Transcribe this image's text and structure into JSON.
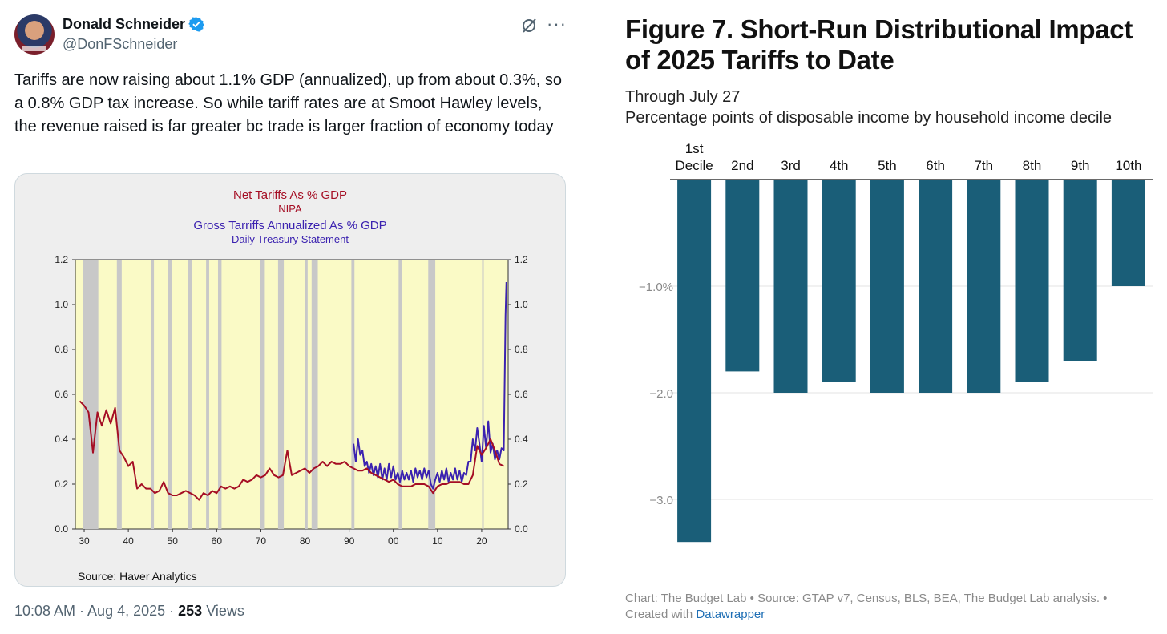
{
  "tweet": {
    "author_name": "Donald Schneider",
    "author_handle": "@DonFSchneider",
    "text": "Tariffs are now raising about 1.1% GDP (annualized), up from about 0.3%, so a 0.8% GDP tax increase. So while tariff rates are at Smoot Hawley levels, the revenue raised is far greater bc trade is larger fraction of economy today",
    "timestamp": "10:08 AM · Aug 4, 2025 · ",
    "views_count": "253",
    "views_label": " Views",
    "colors": {
      "verified": "#1d9bf0",
      "text": "#0f1419",
      "muted": "#536471"
    }
  },
  "left_chart": {
    "title_1": "Net Tariffs As % GDP",
    "title_1_sub": "NIPA",
    "title_2": "Gross Tarriffs Annualized As % GDP",
    "title_2_sub": "Daily Treasury Statement",
    "source": "Source:  Haver Analytics",
    "colors": {
      "net": "#a50e24",
      "gross": "#3b22b0",
      "plot_bg": "#fafac6",
      "recession": "#c8c8c8"
    }
  },
  "figure": {
    "title": "Figure 7. Short-Run Distributional Impact of 2025 Tariffs to Date",
    "subtitle_1": "Through July 27",
    "subtitle_2": "Percentage points of disposable income by household income decile",
    "note_1": "Chart: The Budget Lab • Source: GTAP v7, Census, BLS, BEA, The Budget Lab analysis. • ",
    "note_2": "Created with ",
    "note_link": "Datawrapper",
    "bar_color": "#1a5e78"
  },
  "chart_data": [
    {
      "type": "line",
      "title": "Net Tariffs As % GDP / Gross Tarriffs Annualized As % GDP",
      "x_ticks": [
        "30",
        "40",
        "50",
        "60",
        "70",
        "80",
        "90",
        "00",
        "10",
        "20"
      ],
      "y_ticks": [
        "0.0",
        "0.2",
        "0.4",
        "0.6",
        "0.8",
        "1.0",
        "1.2"
      ],
      "xlim": [
        1928,
        2026
      ],
      "ylim": [
        0,
        1.2
      ],
      "recessions": [
        [
          1929.7,
          1933.2
        ],
        [
          1937.4,
          1938.5
        ],
        [
          1945.1,
          1945.8
        ],
        [
          1948.9,
          1949.8
        ],
        [
          1953.5,
          1954.4
        ],
        [
          1957.6,
          1958.3
        ],
        [
          1960.3,
          1961.1
        ],
        [
          1969.9,
          1970.9
        ],
        [
          1973.9,
          1975.2
        ],
        [
          1980.0,
          1980.6
        ],
        [
          1981.5,
          1982.9
        ],
        [
          1990.5,
          1991.2
        ],
        [
          2001.2,
          2001.9
        ],
        [
          2007.9,
          2009.5
        ],
        [
          2020.1,
          2020.4
        ]
      ],
      "series": [
        {
          "name": "Net Tariffs As % GDP (NIPA)",
          "x": [
            1929,
            1930,
            1931,
            1932,
            1933,
            1934,
            1935,
            1936,
            1937,
            1938,
            1939,
            1940,
            1941,
            1942,
            1943,
            1944,
            1945,
            1946,
            1947,
            1948,
            1949,
            1950,
            1951,
            1952,
            1953,
            1954,
            1955,
            1956,
            1957,
            1958,
            1959,
            1960,
            1961,
            1962,
            1963,
            1964,
            1965,
            1966,
            1967,
            1968,
            1969,
            1970,
            1971,
            1972,
            1973,
            1974,
            1975,
            1976,
            1977,
            1978,
            1979,
            1980,
            1981,
            1982,
            1983,
            1984,
            1985,
            1986,
            1987,
            1988,
            1989,
            1990,
            1991,
            1992,
            1993,
            1994,
            1995,
            1996,
            1997,
            1998,
            1999,
            2000,
            2001,
            2002,
            2003,
            2004,
            2005,
            2006,
            2007,
            2008,
            2009,
            2010,
            2011,
            2012,
            2013,
            2014,
            2015,
            2016,
            2017,
            2018,
            2019,
            2020,
            2021,
            2022,
            2023,
            2024,
            2025
          ],
          "values": [
            0.57,
            0.55,
            0.52,
            0.34,
            0.52,
            0.46,
            0.53,
            0.47,
            0.54,
            0.35,
            0.32,
            0.28,
            0.3,
            0.18,
            0.2,
            0.18,
            0.18,
            0.16,
            0.17,
            0.21,
            0.16,
            0.15,
            0.15,
            0.16,
            0.17,
            0.16,
            0.15,
            0.13,
            0.16,
            0.15,
            0.17,
            0.16,
            0.19,
            0.18,
            0.19,
            0.18,
            0.19,
            0.22,
            0.21,
            0.22,
            0.24,
            0.23,
            0.24,
            0.27,
            0.24,
            0.23,
            0.24,
            0.35,
            0.24,
            0.25,
            0.26,
            0.27,
            0.25,
            0.27,
            0.28,
            0.3,
            0.28,
            0.3,
            0.29,
            0.29,
            0.3,
            0.28,
            0.27,
            0.26,
            0.26,
            0.27,
            0.25,
            0.24,
            0.23,
            0.22,
            0.21,
            0.22,
            0.2,
            0.19,
            0.19,
            0.19,
            0.2,
            0.2,
            0.2,
            0.19,
            0.16,
            0.19,
            0.2,
            0.2,
            0.21,
            0.21,
            0.21,
            0.2,
            0.2,
            0.24,
            0.37,
            0.33,
            0.36,
            0.4,
            0.35,
            0.29,
            0.28
          ]
        },
        {
          "name": "Gross Tarriffs Annualized As % GDP (Daily Treasury Statement)",
          "x": [
            1991.0,
            1991.5,
            1992.0,
            1992.5,
            1993.0,
            1993.5,
            1994.0,
            1994.5,
            1995.0,
            1995.5,
            1996.0,
            1996.5,
            1997.0,
            1997.5,
            1998.0,
            1998.5,
            1999.0,
            1999.5,
            2000.0,
            2000.5,
            2001.0,
            2001.5,
            2002.0,
            2002.5,
            2003.0,
            2003.5,
            2004.0,
            2004.5,
            2005.0,
            2005.5,
            2006.0,
            2006.5,
            2007.0,
            2007.5,
            2008.0,
            2008.5,
            2009.0,
            2009.5,
            2010.0,
            2010.5,
            2011.0,
            2011.5,
            2012.0,
            2012.5,
            2013.0,
            2013.5,
            2014.0,
            2014.5,
            2015.0,
            2015.5,
            2016.0,
            2016.5,
            2017.0,
            2017.5,
            2018.0,
            2018.5,
            2019.0,
            2019.5,
            2020.0,
            2020.5,
            2021.0,
            2021.5,
            2022.0,
            2022.5,
            2023.0,
            2023.5,
            2024.0,
            2024.5,
            2025.0,
            2025.4,
            2025.6
          ],
          "values": [
            0.38,
            0.3,
            0.4,
            0.33,
            0.35,
            0.28,
            0.3,
            0.25,
            0.29,
            0.24,
            0.28,
            0.23,
            0.29,
            0.22,
            0.27,
            0.22,
            0.29,
            0.23,
            0.28,
            0.22,
            0.25,
            0.21,
            0.26,
            0.22,
            0.25,
            0.22,
            0.26,
            0.21,
            0.27,
            0.23,
            0.26,
            0.22,
            0.27,
            0.23,
            0.26,
            0.2,
            0.18,
            0.22,
            0.25,
            0.21,
            0.26,
            0.22,
            0.27,
            0.21,
            0.25,
            0.22,
            0.27,
            0.22,
            0.26,
            0.21,
            0.25,
            0.24,
            0.3,
            0.3,
            0.4,
            0.35,
            0.45,
            0.38,
            0.3,
            0.46,
            0.36,
            0.48,
            0.34,
            0.38,
            0.31,
            0.35,
            0.31,
            0.36,
            0.35,
            0.95,
            1.1
          ]
        }
      ]
    },
    {
      "type": "bar",
      "title": "Figure 7. Short-Run Distributional Impact of 2025 Tariffs to Date",
      "categories": [
        "1st Decile",
        "2nd",
        "3rd",
        "4th",
        "5th",
        "6th",
        "7th",
        "8th",
        "9th",
        "10th"
      ],
      "values": [
        -3.4,
        -1.8,
        -2.0,
        -1.9,
        -2.0,
        -2.0,
        -2.0,
        -1.9,
        -1.7,
        -1.0
      ],
      "y_ticks": [
        -1.0,
        -2.0,
        -3.0
      ],
      "y_tick_labels": [
        "−1.0%",
        "−2.0",
        "−3.0"
      ],
      "ylim": [
        -3.4,
        0
      ],
      "ylabel": "Percentage points of disposable income by household income decile",
      "xlabel": ""
    }
  ]
}
